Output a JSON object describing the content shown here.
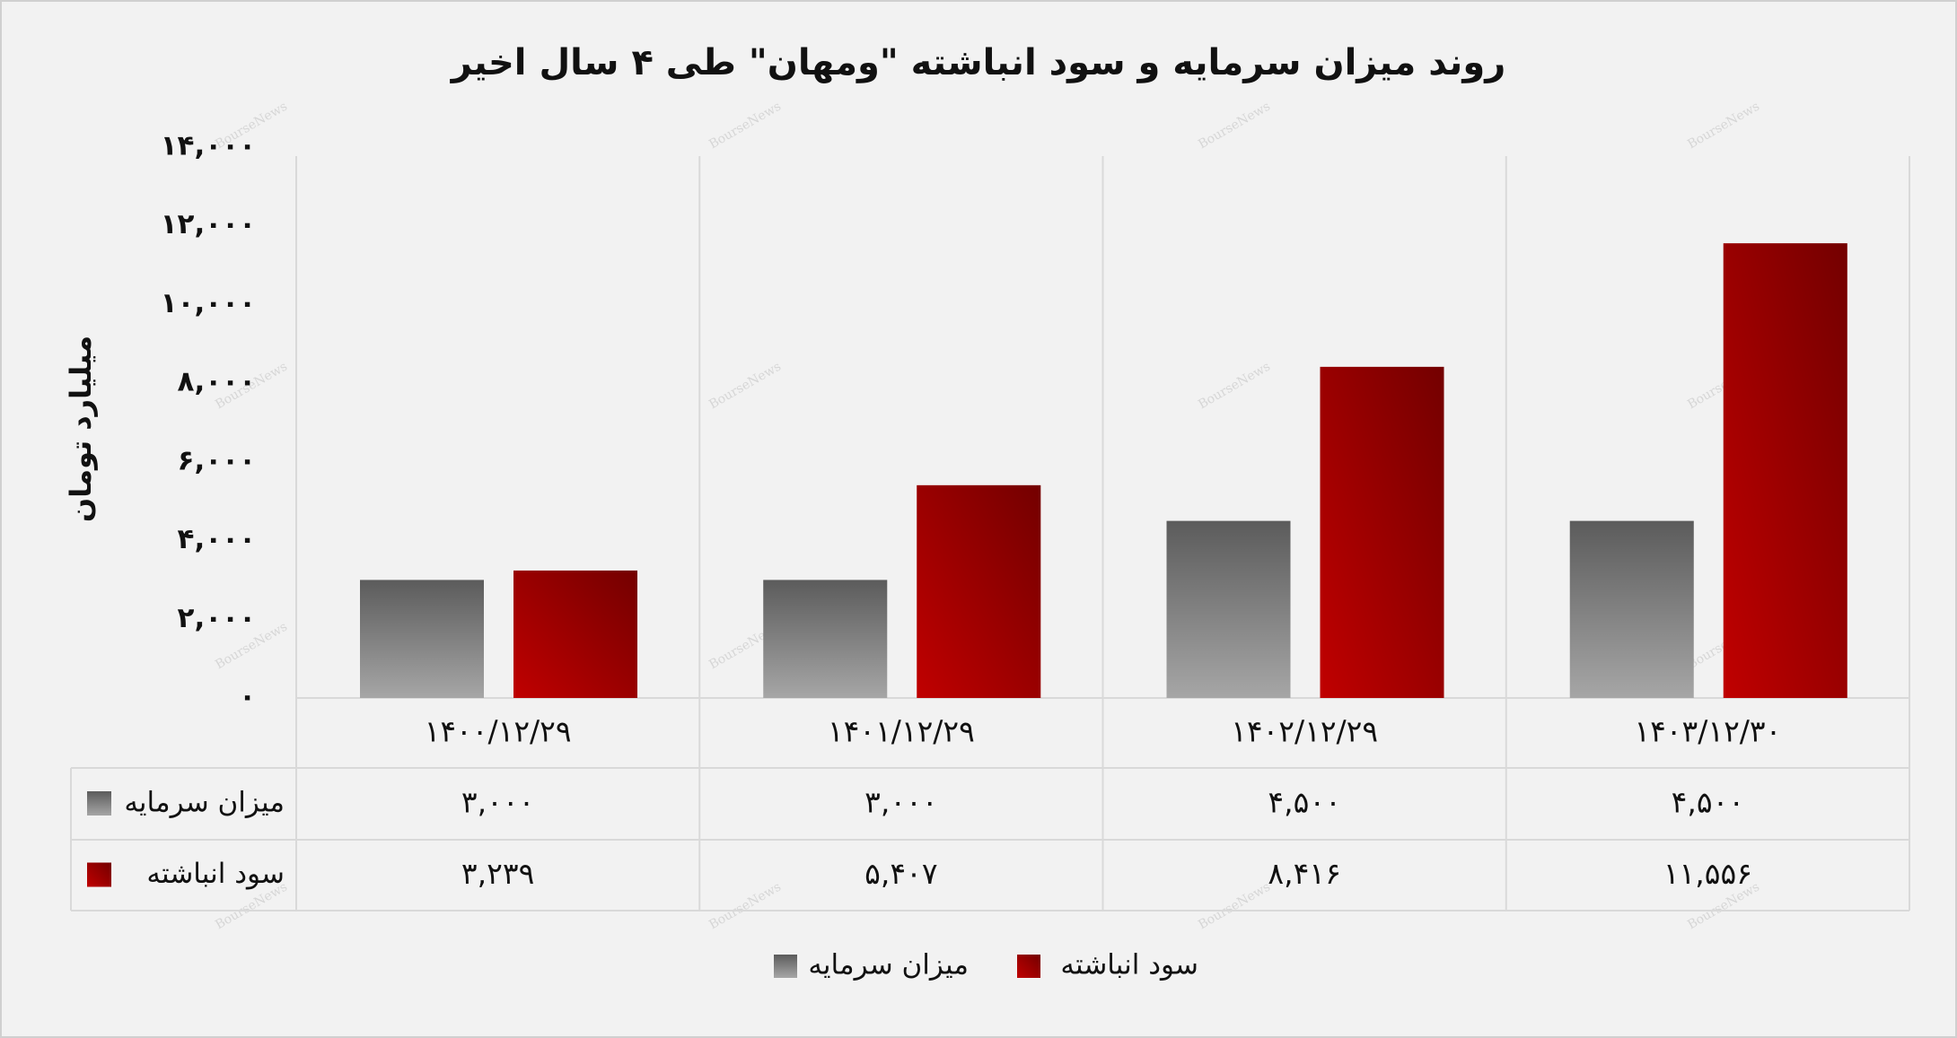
{
  "chart_data": {
    "type": "bar",
    "title": "روند میزان سرمایه و سود انباشته \"ومهان\" طی ۴ سال اخیر",
    "y_label": "میلیارد تومان",
    "watermark": "BourseNews",
    "categories": [
      "۱۴۰۰/۱۲/۲۹",
      "۱۴۰۱/۱۲/۲۹",
      "۱۴۰۲/۱۲/۲۹",
      "۱۴۰۳/۱۲/۳۰"
    ],
    "series": [
      {
        "name": "میزان سرمایه",
        "color": "#a6a6a6",
        "values": [
          3000,
          3000,
          4500,
          4500
        ],
        "value_labels": [
          "۳,۰۰۰",
          "۳,۰۰۰",
          "۴,۵۰۰",
          "۴,۵۰۰"
        ]
      },
      {
        "name": "سود انباشته",
        "color": "#c00000",
        "values": [
          3239,
          5407,
          8416,
          11556
        ],
        "value_labels": [
          "۳,۲۳۹",
          "۵,۴۰۷",
          "۸,۴۱۶",
          "۱۱,۵۵۶"
        ]
      }
    ],
    "ylim": [
      0,
      14000
    ],
    "yticks": [
      {
        "value": 0,
        "label": "۰"
      },
      {
        "value": 2000,
        "label": "۲,۰۰۰"
      },
      {
        "value": 4000,
        "label": "۴,۰۰۰"
      },
      {
        "value": 6000,
        "label": "۶,۰۰۰"
      },
      {
        "value": 8000,
        "label": "۸,۰۰۰"
      },
      {
        "value": 10000,
        "label": "۱۰,۰۰۰"
      },
      {
        "value": 12000,
        "label": "۱۲,۰۰۰"
      },
      {
        "value": 14000,
        "label": "۱۴,۰۰۰"
      }
    ],
    "legend": "bottom"
  }
}
